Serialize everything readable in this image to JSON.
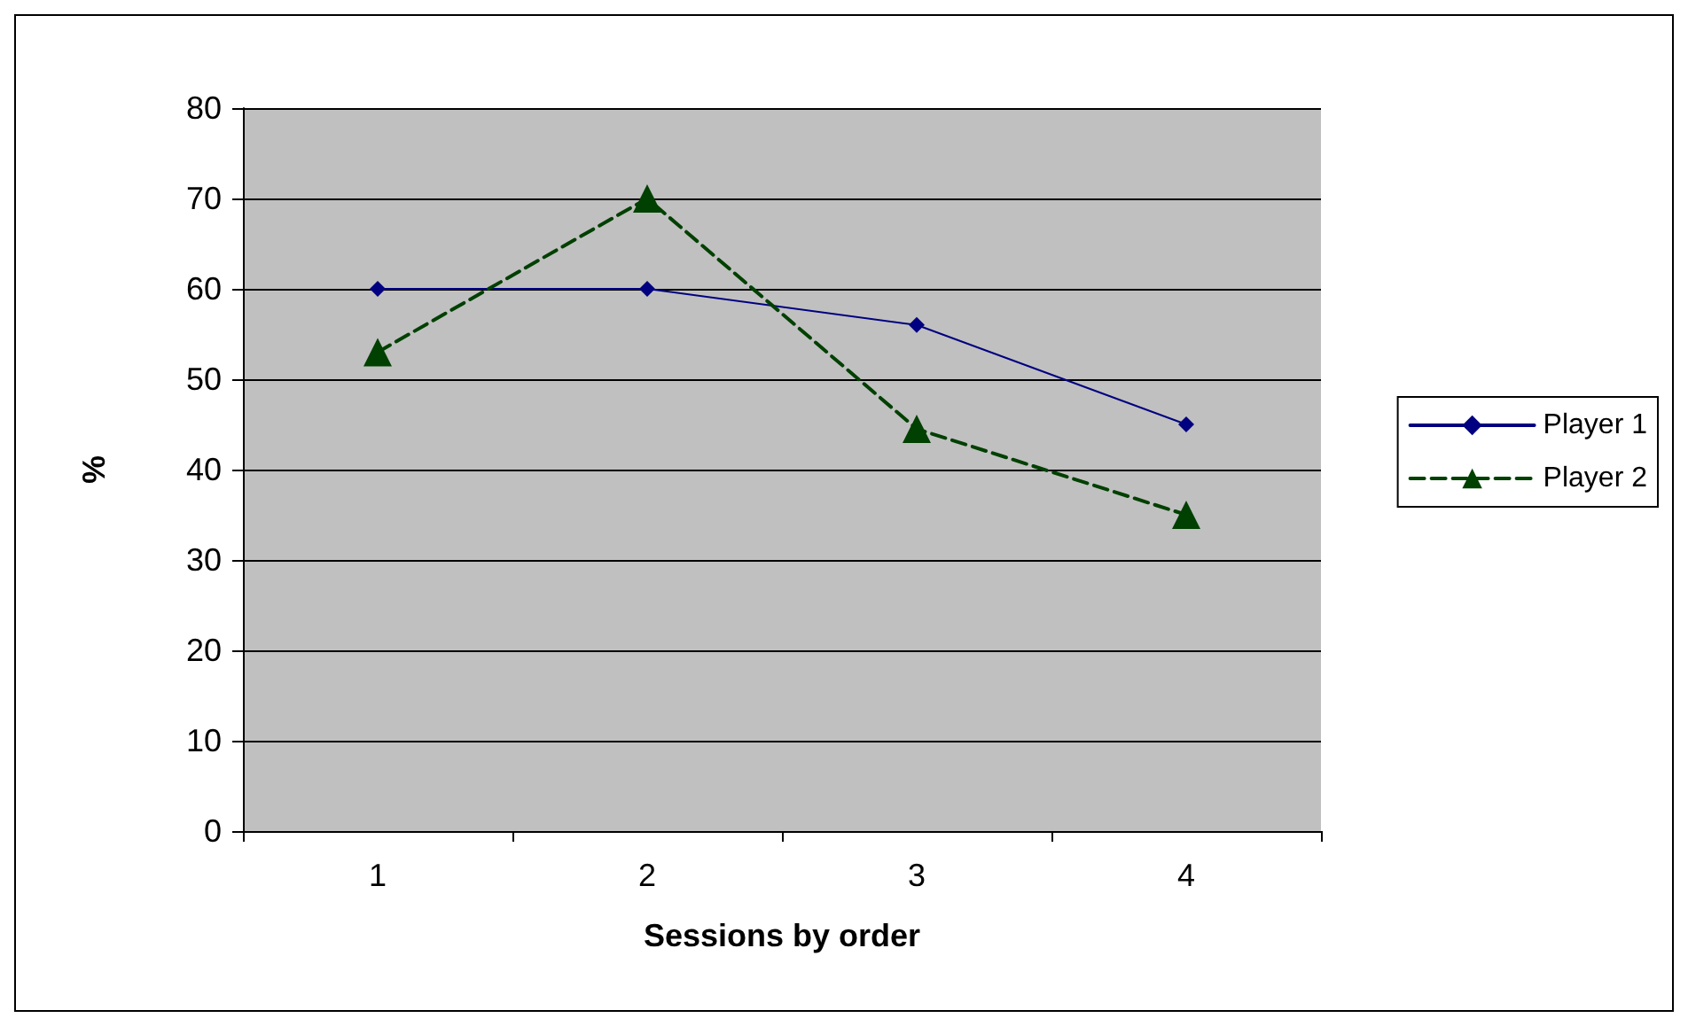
{
  "chart_data": {
    "type": "line",
    "xlabel": "Sessions by order",
    "ylabel": "%",
    "categories": [
      "1",
      "2",
      "3",
      "4"
    ],
    "series": [
      {
        "name": "Player 1",
        "color": "#000080",
        "marker": "diamond",
        "line_style": "solid",
        "values": [
          60,
          60,
          56,
          45
        ]
      },
      {
        "name": "Player 2",
        "color": "#004000",
        "marker": "triangle",
        "line_style": "dashed",
        "values": [
          53,
          70,
          44.5,
          35
        ]
      }
    ],
    "ylim": [
      0,
      80
    ],
    "yticks": [
      0,
      10,
      20,
      30,
      40,
      50,
      60,
      70,
      80
    ],
    "grid": "y",
    "legend": "right"
  }
}
